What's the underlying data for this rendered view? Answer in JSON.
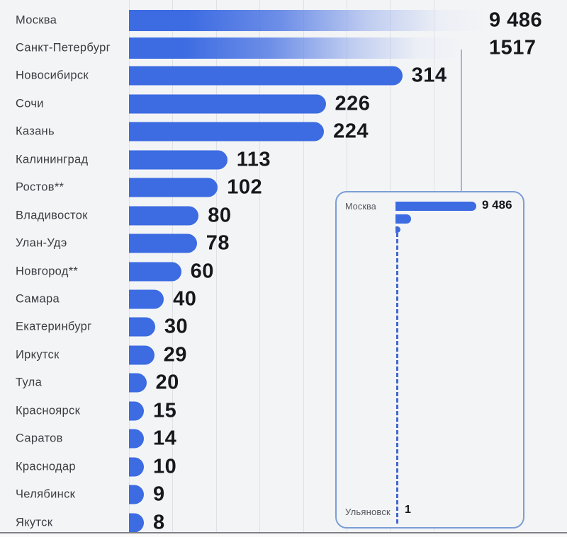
{
  "page": {
    "background_color": "#f3f4f6",
    "gridline_color": "#dfe1e6",
    "bottom_rule_color": "#808086",
    "label_text_color": "#3c3d42",
    "value_text_color": "#17181c"
  },
  "chart_data": {
    "type": "bar",
    "orientation": "horizontal",
    "title": "",
    "xlabel": "",
    "ylabel": "",
    "legend_position": "none",
    "grid": "vertical, every 50 units, 8 lines from 0 to 350",
    "axis_visible_max": 350,
    "bar_color": "#3c6be2",
    "categories": [
      "Москва",
      "Санкт-Петербург",
      "Новосибирск",
      "Сочи",
      "Казань",
      "Калининград",
      "Ростов**",
      "Владивосток",
      "Улан-Удэ",
      "Новгород**",
      "Самара",
      "Екатеринбург",
      "Иркутск",
      "Тула",
      "Красноярск",
      "Саратов",
      "Краснодар",
      "Челябинск",
      "Якутск"
    ],
    "values": [
      9486,
      1517,
      314,
      226,
      224,
      113,
      102,
      80,
      78,
      60,
      40,
      30,
      29,
      20,
      15,
      14,
      10,
      9,
      8
    ],
    "value_labels": [
      "9 486",
      "1517",
      "314",
      "226",
      "224",
      "113",
      "102",
      "80",
      "78",
      "60",
      "40",
      "30",
      "29",
      "20",
      "15",
      "14",
      "10",
      "9",
      "8"
    ],
    "overflow_bars_note": "Москва and Санкт-Петербург exceed axis max; their bars fade out to the right",
    "inset": {
      "type": "bar",
      "note": "full-scale miniature of same data; intermediate bars collapse into dashed axis line",
      "border_color": "#7b9ed6",
      "dashed_line_color": "#4168c9",
      "top_label": "Москва",
      "top_value_label": "9 486",
      "top_value": 9486,
      "second_value": 1517,
      "bottom_label": "Ульяновск",
      "bottom_value_label": "1",
      "bottom_value": 1
    }
  }
}
